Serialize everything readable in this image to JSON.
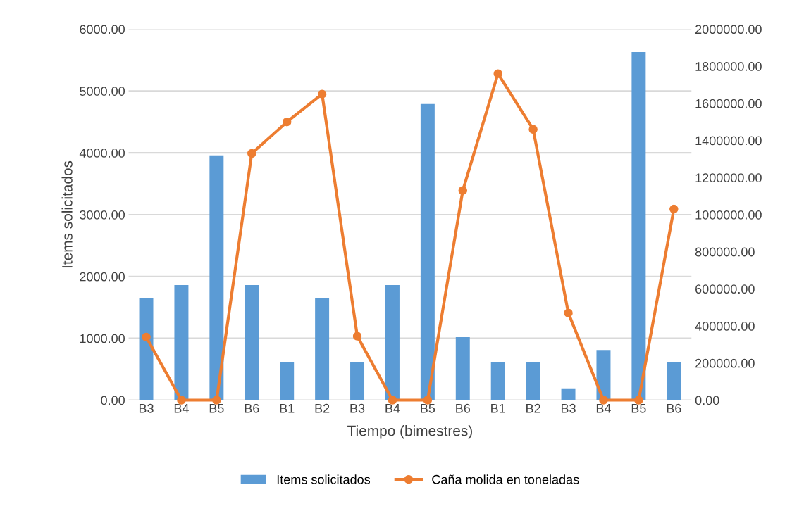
{
  "chart_data": {
    "type": "bar",
    "xlabel": "Tiempo (bimestres)",
    "ylabel": "Items solicitados",
    "categories": [
      "B3",
      "B4",
      "B5",
      "B6",
      "B1",
      "B2",
      "B3",
      "B4",
      "B5",
      "B6",
      "B1",
      "B2",
      "B3",
      "B4",
      "B5",
      "B6"
    ],
    "series": [
      {
        "name": "Items solicitados",
        "color": "#5b9bd5",
        "values": [
          1650,
          1860,
          3960,
          1860,
          610,
          1650,
          610,
          1860,
          4790,
          1020,
          610,
          610,
          190,
          810,
          5630,
          610
        ]
      },
      {
        "name": "Caña molida en toneladas",
        "type": "line",
        "axis": "y2",
        "color": "#ed7d31",
        "values": [
          340000,
          0,
          0,
          1330000,
          1500000,
          1650000,
          345000,
          0,
          0,
          1130000,
          1760000,
          1460000,
          470000,
          0,
          0,
          1030000
        ]
      }
    ],
    "ylim": [
      0,
      6000
    ],
    "yticks": [
      {
        "value": 0,
        "label": "0.00"
      },
      {
        "value": 1000,
        "label": "1000.00"
      },
      {
        "value": 2000,
        "label": "2000.00"
      },
      {
        "value": 3000,
        "label": "3000.00"
      },
      {
        "value": 4000,
        "label": "4000.00"
      },
      {
        "value": 5000,
        "label": "5000.00"
      },
      {
        "value": 6000,
        "label": "6000.00"
      }
    ],
    "y2lim": [
      0,
      2000000
    ],
    "y2ticks": [
      {
        "value": 0,
        "label": "0.00"
      },
      {
        "value": 200000,
        "label": "200000.00"
      },
      {
        "value": 400000,
        "label": "400000.00"
      },
      {
        "value": 600000,
        "label": "600000.00"
      },
      {
        "value": 800000,
        "label": "800000.00"
      },
      {
        "value": 1000000,
        "label": "1000000.00"
      },
      {
        "value": 1200000,
        "label": "1200000.00"
      },
      {
        "value": 1400000,
        "label": "1400000.00"
      },
      {
        "value": 1600000,
        "label": "1600000.00"
      },
      {
        "value": 1800000,
        "label": "1800000.00"
      },
      {
        "value": 2000000,
        "label": "2000000.00"
      }
    ],
    "grid": "y",
    "legend": "bottom",
    "marker": "circle",
    "line_style": "solid"
  }
}
